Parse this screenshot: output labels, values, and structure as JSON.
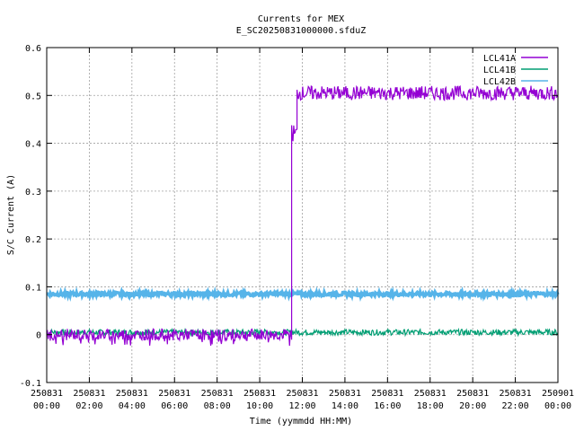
{
  "chart_data": {
    "type": "line",
    "title": "Currents for MEX",
    "subtitle": "E_SC20250831000000.sfduZ",
    "xlabel": "Time (yymmdd HH:MM)",
    "ylabel": "S/C Current (A)",
    "xlim_hours": [
      0,
      24
    ],
    "ylim": [
      -0.1,
      0.6
    ],
    "yticks": [
      -0.1,
      0,
      0.1,
      0.2,
      0.3,
      0.4,
      0.5,
      0.6
    ],
    "ytick_labels": [
      "-0.1",
      "0",
      "0.1",
      "0.2",
      "0.3",
      "0.4",
      "0.5",
      "0.6"
    ],
    "xticks": [
      {
        "h": 0,
        "date": "250831",
        "time": "00:00"
      },
      {
        "h": 2,
        "date": "250831",
        "time": "02:00"
      },
      {
        "h": 4,
        "date": "250831",
        "time": "04:00"
      },
      {
        "h": 6,
        "date": "250831",
        "time": "06:00"
      },
      {
        "h": 8,
        "date": "250831",
        "time": "08:00"
      },
      {
        "h": 10,
        "date": "250831",
        "time": "10:00"
      },
      {
        "h": 12,
        "date": "250831",
        "time": "12:00"
      },
      {
        "h": 14,
        "date": "250831",
        "time": "14:00"
      },
      {
        "h": 16,
        "date": "250831",
        "time": "16:00"
      },
      {
        "h": 18,
        "date": "250831",
        "time": "18:00"
      },
      {
        "h": 20,
        "date": "250831",
        "time": "20:00"
      },
      {
        "h": 22,
        "date": "250831",
        "time": "22:00"
      },
      {
        "h": 24,
        "date": "250901",
        "time": "00:00"
      }
    ],
    "grid": true,
    "legend_position": "top-right",
    "series": [
      {
        "name": "LCL41A",
        "color": "#9400d3",
        "segments": [
          {
            "from_h": 0,
            "to_h": 11.5,
            "level": 0.0,
            "noise": 0.012
          },
          {
            "from_h": 11.5,
            "to_h": 11.75,
            "level": 0.42,
            "noise": 0.02
          },
          {
            "from_h": 11.75,
            "to_h": 24,
            "level": 0.505,
            "noise": 0.015
          }
        ]
      },
      {
        "name": "LCL41B",
        "color": "#009e73",
        "segments": [
          {
            "from_h": 0,
            "to_h": 24,
            "level": 0.005,
            "noise": 0.006
          }
        ]
      },
      {
        "name": "LCL42B",
        "color": "#56b4e9",
        "segments": [
          {
            "from_h": 0,
            "to_h": 24,
            "level": 0.085,
            "noise": 0.004
          }
        ]
      }
    ]
  }
}
